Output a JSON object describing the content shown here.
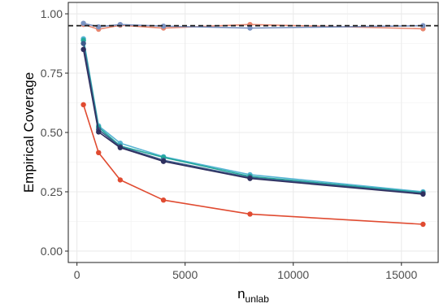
{
  "chart_data": {
    "type": "line",
    "xlabel": {
      "base": "n",
      "subscript": "unlab"
    },
    "ylabel": "Empirical Coverage",
    "xlim": [
      -400,
      16700
    ],
    "ylim": [
      -0.048,
      1.048
    ],
    "x_ticks": [
      0,
      5000,
      10000,
      15000
    ],
    "x_tick_labels": [
      "0",
      "5000",
      "10000",
      "15000"
    ],
    "y_ticks": [
      0,
      0.25,
      0.5,
      0.75,
      1
    ],
    "y_tick_labels": [
      "0.00",
      "0.25",
      "0.50",
      "0.75",
      "1.00"
    ],
    "grid": true,
    "legend": "none",
    "reference_line": {
      "y": 0.95,
      "style": "dashed",
      "color": "#1a1a1a"
    },
    "x": [
      300,
      1000,
      2000,
      4000,
      8000,
      16000
    ],
    "series": [
      {
        "color": "#e8866f",
        "values": [
          0.955,
          0.935,
          0.952,
          0.94,
          0.955,
          0.937
        ]
      },
      {
        "color": "#7b93c2",
        "values": [
          0.96,
          0.945,
          0.955,
          0.948,
          0.94,
          0.95
        ]
      },
      {
        "color": "#e04b31",
        "values": [
          0.617,
          0.415,
          0.3,
          0.215,
          0.156,
          0.113
        ]
      },
      {
        "color": "#56b4d3",
        "values": [
          0.895,
          0.528,
          0.455,
          0.398,
          0.322,
          0.25
        ]
      },
      {
        "color": "#22a79a",
        "values": [
          0.888,
          0.522,
          0.443,
          0.395,
          0.315,
          0.246
        ]
      },
      {
        "color": "#3c5a8a",
        "values": [
          0.875,
          0.512,
          0.44,
          0.383,
          0.31,
          0.243
        ]
      },
      {
        "color": "#2e2f5e",
        "values": [
          0.85,
          0.502,
          0.436,
          0.378,
          0.306,
          0.24
        ]
      }
    ]
  }
}
